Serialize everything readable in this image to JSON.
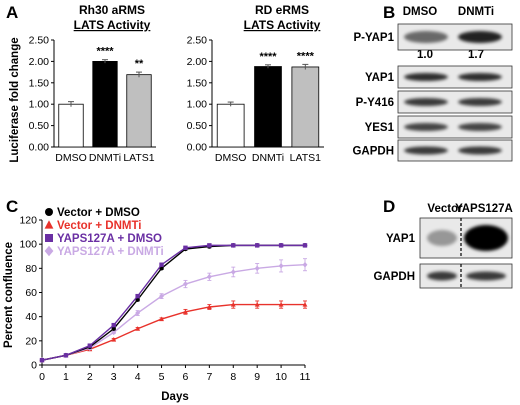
{
  "panels": {
    "A": "A",
    "B": "B",
    "C": "C",
    "D": "D"
  },
  "chart_data": [
    {
      "panel": "A",
      "type": "bar",
      "title_lines": [
        "Rh30 aRMS",
        "LATS Activity"
      ],
      "ylabel": "Luciferase fold change",
      "ylim": [
        0,
        2.5
      ],
      "yticks": [
        "0.00",
        "0.50",
        "1.00",
        "1.50",
        "2.00",
        "2.50"
      ],
      "categories": [
        "DMSO",
        "DNMTi",
        "LATS1"
      ],
      "values": [
        1.0,
        2.0,
        1.69
      ],
      "errors": [
        0.06,
        0.04,
        0.06
      ],
      "significance": [
        "",
        "****",
        "**"
      ],
      "colors": [
        "#ffffff",
        "#000000",
        "#bfbfbf"
      ]
    },
    {
      "panel": "A",
      "type": "bar",
      "title_lines": [
        "RD eRMS",
        "LATS Activity"
      ],
      "ylim": [
        0,
        2.5
      ],
      "yticks": [
        "0.00",
        "0.50",
        "1.00",
        "1.50",
        "2.00",
        "2.50"
      ],
      "categories": [
        "DMSO",
        "DNMTi",
        "LATS1"
      ],
      "values": [
        1.0,
        1.88,
        1.87
      ],
      "errors": [
        0.05,
        0.04,
        0.06
      ],
      "significance": [
        "",
        "****",
        "****"
      ],
      "colors": [
        "#ffffff",
        "#000000",
        "#bfbfbf"
      ]
    },
    {
      "panel": "C",
      "type": "line",
      "ylabel": "Percent confluence",
      "xlabel": "Days",
      "xlim": [
        0,
        11
      ],
      "ylim": [
        0,
        120
      ],
      "xticks": [
        0,
        1,
        2,
        3,
        4,
        5,
        6,
        7,
        8,
        9,
        10,
        11
      ],
      "yticks": [
        0,
        20,
        40,
        60,
        80,
        100,
        120
      ],
      "x": [
        0,
        1,
        2,
        3,
        4,
        5,
        6,
        7,
        8,
        9,
        10,
        11
      ],
      "series": [
        {
          "name": "Vector + DMSO",
          "color": "#000000",
          "marker": "circle",
          "values": [
            4,
            8,
            15,
            30,
            54,
            80,
            96,
            98,
            99,
            99,
            99,
            99
          ],
          "errors": [
            0,
            0,
            1,
            1,
            1,
            1,
            1,
            1,
            1,
            1,
            1,
            1
          ]
        },
        {
          "name": "Vector + DNMTi",
          "color": "#e8322b",
          "marker": "triangle",
          "values": [
            4,
            8,
            13,
            21,
            30,
            38,
            44,
            48,
            50,
            50,
            50,
            50
          ],
          "errors": [
            0,
            0,
            1,
            1,
            1,
            1,
            2,
            2,
            3,
            3,
            3,
            3
          ]
        },
        {
          "name": "YAPS127A + DMSO",
          "color": "#6a2fa3",
          "marker": "square",
          "values": [
            4,
            8,
            16,
            33,
            57,
            83,
            97,
            99,
            99,
            99,
            99,
            99
          ],
          "errors": [
            0,
            0,
            1,
            1,
            1,
            1,
            1,
            1,
            1,
            1,
            1,
            1
          ]
        },
        {
          "name": "YAPS127A + DNMTi",
          "color": "#c9a9e4",
          "marker": "diamond",
          "values": [
            4,
            8,
            14,
            27,
            43,
            57,
            67,
            73,
            77,
            80,
            82,
            83
          ],
          "errors": [
            0,
            0,
            1,
            1,
            2,
            2,
            3,
            3,
            4,
            4,
            5,
            5
          ]
        }
      ]
    }
  ],
  "western_B": {
    "columns": [
      "DMSO",
      "DNMTi"
    ],
    "rows": [
      {
        "label": "P-YAP1",
        "intensity": [
          0.55,
          0.85
        ]
      },
      {
        "label": "YAP1",
        "intensity": [
          0.8,
          0.8
        ]
      },
      {
        "label": "P-Y416",
        "intensity": [
          0.75,
          0.75
        ]
      },
      {
        "label": "YES1",
        "intensity": [
          0.7,
          0.7
        ]
      },
      {
        "label": "GAPDH",
        "intensity": [
          0.75,
          0.75
        ]
      }
    ],
    "quant": [
      "1.0",
      "1.7"
    ]
  },
  "western_D": {
    "columns": [
      "Vector",
      "YAPS127A"
    ],
    "rows": [
      {
        "label": "YAP1",
        "intensity": [
          0.35,
          1.0
        ]
      },
      {
        "label": "GAPDH",
        "intensity": [
          0.75,
          0.75
        ]
      }
    ]
  }
}
